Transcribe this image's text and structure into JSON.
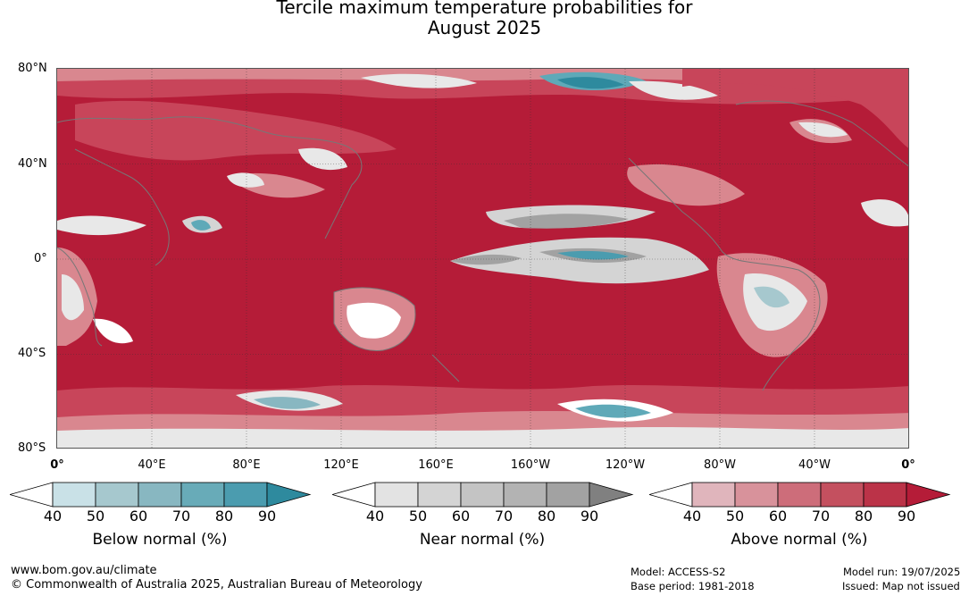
{
  "title_line1": "Tercile maximum temperature probabilities for",
  "title_line2": "August 2025",
  "map": {
    "lat_labels": [
      "80°N",
      "40°N",
      "0°",
      "40°S",
      "80°S"
    ],
    "lon_labels": [
      "0°",
      "40°E",
      "80°E",
      "120°E",
      "160°E",
      "160°W",
      "120°W",
      "80°W",
      "40°W",
      "0°"
    ],
    "colors": {
      "above_high": "#b51c38",
      "above_mid": "#c8455a",
      "above_low": "#d9878f",
      "near": "#d4d4d4",
      "below": "#5fa9b8"
    }
  },
  "legends": [
    {
      "title": "Below normal (%)",
      "ticks": [
        "40",
        "50",
        "60",
        "70",
        "80",
        "90"
      ],
      "colors": [
        "#ffffff",
        "#c9e1e7",
        "#a6c8ce",
        "#88b7c1",
        "#68abb8",
        "#4b9caf",
        "#2e8a9e"
      ]
    },
    {
      "title": "Near normal (%)",
      "ticks": [
        "40",
        "50",
        "60",
        "70",
        "80",
        "90"
      ],
      "colors": [
        "#ffffff",
        "#e3e3e3",
        "#d4d4d4",
        "#c4c4c4",
        "#b3b3b3",
        "#a2a2a2",
        "#808080"
      ]
    },
    {
      "title": "Above normal (%)",
      "ticks": [
        "40",
        "50",
        "60",
        "70",
        "80",
        "90"
      ],
      "colors": [
        "#ffffff",
        "#e0b5bc",
        "#d8929b",
        "#cd6d7a",
        "#c4505f",
        "#bb3348",
        "#b51c38"
      ]
    }
  ],
  "footer": {
    "url": "www.bom.gov.au/climate",
    "copyright": "© Commonwealth of Australia 2025, Australian Bureau of Meteorology",
    "model": "Model: ACCESS-S2",
    "base_period": "Base period: 1981-2018",
    "model_run": "Model run: 19/07/2025",
    "issued": "Issued: Map not issued"
  }
}
